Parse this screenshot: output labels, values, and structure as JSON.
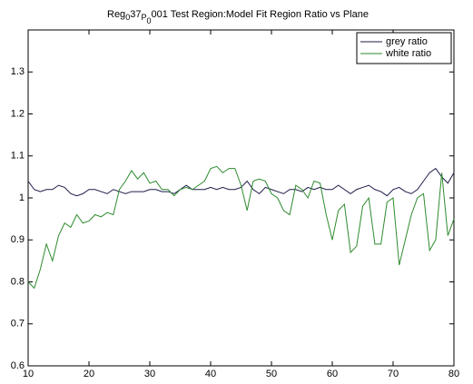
{
  "chart_data": {
    "type": "line",
    "title": [
      "Reg",
      "0",
      "37",
      "P",
      "0",
      "001 Test Region:Model Fit Region Ratio vs Plane"
    ],
    "title_levels": [
      0,
      1,
      0,
      1,
      2,
      0
    ],
    "x": [
      10,
      11,
      12,
      13,
      14,
      15,
      16,
      17,
      18,
      19,
      20,
      21,
      22,
      23,
      24,
      25,
      26,
      27,
      28,
      29,
      30,
      31,
      32,
      33,
      34,
      35,
      36,
      37,
      38,
      39,
      40,
      41,
      42,
      43,
      44,
      45,
      46,
      47,
      48,
      49,
      50,
      51,
      52,
      53,
      54,
      55,
      56,
      57,
      58,
      59,
      60,
      61,
      62,
      63,
      64,
      65,
      66,
      67,
      68,
      69,
      70,
      71,
      72,
      73,
      74,
      75,
      76,
      77,
      78,
      79,
      80
    ],
    "series": [
      {
        "name": "grey ratio",
        "color": "#1c1c4a",
        "values": [
          1.04,
          1.02,
          1.015,
          1.02,
          1.02,
          1.03,
          1.025,
          1.01,
          1.005,
          1.01,
          1.02,
          1.02,
          1.015,
          1.01,
          1.02,
          1.015,
          1.01,
          1.015,
          1.015,
          1.015,
          1.02,
          1.02,
          1.015,
          1.015,
          1.01,
          1.02,
          1.03,
          1.02,
          1.02,
          1.02,
          1.025,
          1.02,
          1.025,
          1.02,
          1.02,
          1.025,
          1.04,
          1.02,
          1.01,
          1.025,
          1.02,
          1.015,
          1.01,
          1.02,
          1.02,
          1.015,
          1.025,
          1.02,
          1.025,
          1.02,
          1.02,
          1.03,
          1.02,
          1.01,
          1.02,
          1.025,
          1.03,
          1.02,
          1.015,
          1.005,
          1.02,
          1.025,
          1.015,
          1.01,
          1.02,
          1.04,
          1.06,
          1.07,
          1.05,
          1.035,
          1.06
        ]
      },
      {
        "name": "white ratio",
        "color": "#2e8b2e",
        "values": [
          0.8,
          0.785,
          0.83,
          0.89,
          0.85,
          0.91,
          0.94,
          0.93,
          0.96,
          0.94,
          0.945,
          0.96,
          0.955,
          0.965,
          0.96,
          1.02,
          1.04,
          1.065,
          1.045,
          1.06,
          1.035,
          1.04,
          1.02,
          1.02,
          1.005,
          1.02,
          1.025,
          1.02,
          1.03,
          1.04,
          1.07,
          1.075,
          1.06,
          1.07,
          1.07,
          1.03,
          0.97,
          1.04,
          1.045,
          1.04,
          1.01,
          1.0,
          0.97,
          0.96,
          1.03,
          1.02,
          1.0,
          1.04,
          1.035,
          0.96,
          0.9,
          0.97,
          0.985,
          0.87,
          0.885,
          0.98,
          1.0,
          0.89,
          0.89,
          0.99,
          1.0,
          0.84,
          0.9,
          0.96,
          1.0,
          1.01,
          0.875,
          0.9,
          1.06,
          0.91,
          0.95
        ]
      }
    ],
    "xlim": [
      10,
      80
    ],
    "xticks": [
      10,
      20,
      30,
      40,
      50,
      60,
      70,
      80
    ],
    "ylim": [
      0.6,
      1.4
    ],
    "yticks": [
      0.6,
      0.7,
      0.8,
      0.9,
      1,
      1.1,
      1.2,
      1.3
    ],
    "legend": "top-right",
    "grid": false
  }
}
